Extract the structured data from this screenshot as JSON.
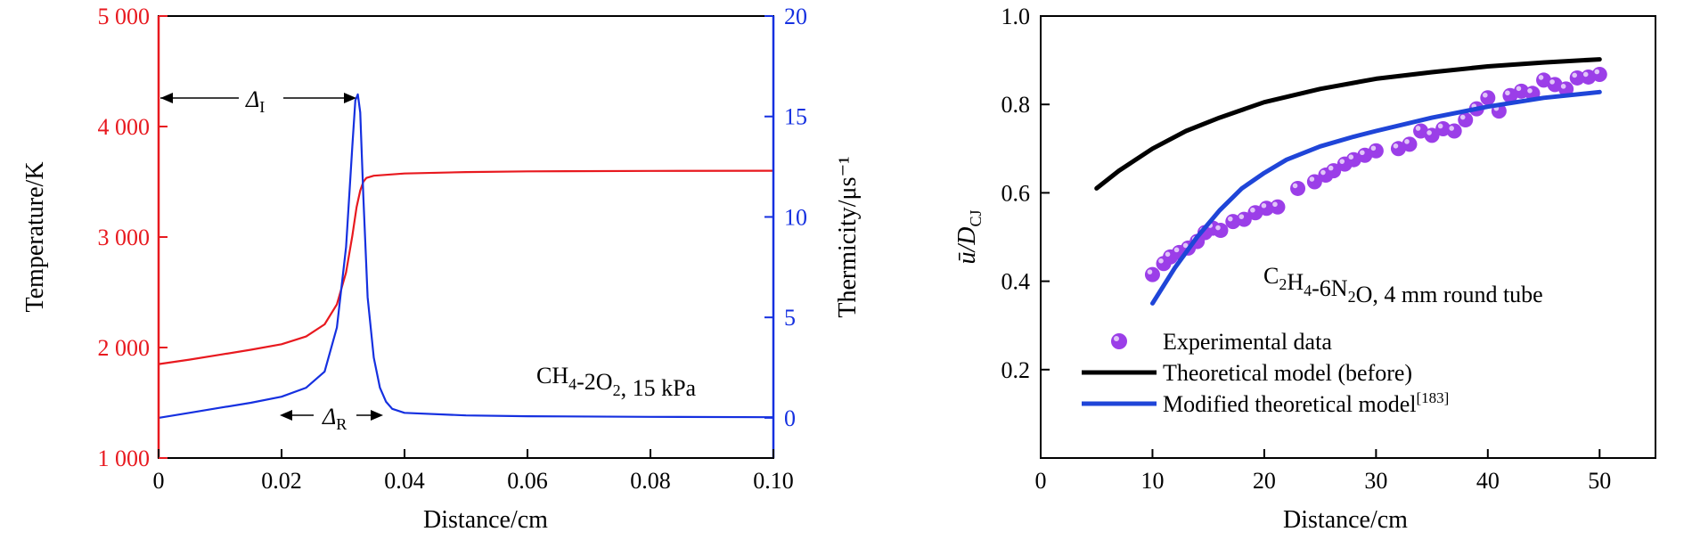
{
  "chart_data": [
    {
      "type": "line",
      "annotation": "CH4-2O2, 15 kPa",
      "delta_i_label": "Δ",
      "delta_i_sub": "I",
      "delta_r_label": "Δ",
      "delta_r_sub": "R",
      "colors": {
        "left": "#e8191f",
        "right": "#1530e0",
        "axis": "#000000"
      },
      "x_axis": {
        "label": "Distance/cm",
        "range": [
          0,
          0.1
        ],
        "ticks": [
          0,
          0.02,
          0.04,
          0.06,
          0.08,
          0.1
        ],
        "tick_labels": [
          "0",
          "0.02",
          "0.04",
          "0.06",
          "0.08",
          "0.10"
        ]
      },
      "y_left": {
        "label": "Temperature/K",
        "range": [
          1000,
          5000
        ],
        "ticks": [
          1000,
          2000,
          3000,
          4000,
          5000
        ],
        "tick_labels": [
          "1 000",
          "2 000",
          "3 000",
          "4 000",
          "5 000"
        ]
      },
      "y_right": {
        "label": "Thermicity/μs⁻¹",
        "range": [
          -2,
          20
        ],
        "ticks": [
          0,
          5,
          10,
          15,
          20
        ],
        "tick_labels": [
          "0",
          "5",
          "10",
          "15",
          "20"
        ]
      },
      "series": [
        {
          "axis": "left",
          "color": "#e8191f",
          "x": [
            0,
            0.005,
            0.01,
            0.015,
            0.02,
            0.024,
            0.027,
            0.029,
            0.0305,
            0.0315,
            0.0322,
            0.0328,
            0.0333,
            0.0338,
            0.035,
            0.04,
            0.05,
            0.06,
            0.08,
            0.1
          ],
          "y": [
            1850,
            1890,
            1935,
            1980,
            2030,
            2100,
            2210,
            2390,
            2680,
            3010,
            3270,
            3420,
            3500,
            3535,
            3555,
            3575,
            3588,
            3594,
            3598,
            3600
          ]
        },
        {
          "axis": "right",
          "color": "#1530e0",
          "x": [
            0,
            0.005,
            0.01,
            0.015,
            0.02,
            0.024,
            0.027,
            0.029,
            0.0305,
            0.0315,
            0.032,
            0.0324,
            0.0328,
            0.0333,
            0.034,
            0.035,
            0.036,
            0.037,
            0.038,
            0.04,
            0.05,
            0.06,
            0.08,
            0.1
          ],
          "y": [
            0,
            0.25,
            0.5,
            0.75,
            1.05,
            1.5,
            2.3,
            4.5,
            8.5,
            13.5,
            15.8,
            16.1,
            15.2,
            11,
            6,
            3,
            1.5,
            0.8,
            0.45,
            0.25,
            0.12,
            0.08,
            0.05,
            0.03
          ]
        }
      ]
    },
    {
      "type": "scatter",
      "annotation": "C2H4-6N2O, 4 mm round tube",
      "colors": {
        "experimental": "#9b3ee8",
        "before": "#000000",
        "modified": "#1f45d8"
      },
      "x_axis": {
        "label": "Distance/cm",
        "range": [
          0,
          55
        ],
        "ticks": [
          0,
          10,
          20,
          30,
          40,
          50
        ],
        "tick_labels": [
          "0",
          "10",
          "20",
          "30",
          "40",
          "50"
        ]
      },
      "y_axis": {
        "label": "ū/D_CJ",
        "range": [
          0,
          1.0
        ],
        "ticks": [
          0.2,
          0.4,
          0.6,
          0.8,
          1.0
        ],
        "tick_labels": [
          "0.2",
          "0.4",
          "0.6",
          "0.8",
          "1.0"
        ]
      },
      "legend": [
        "Experimental data",
        "Theoretical model (before)",
        "Modified theoretical model[183]"
      ],
      "series": [
        {
          "name": "Experimental data",
          "kind": "points",
          "x": [
            10,
            11,
            11.6,
            12.4,
            13.2,
            14,
            14.7,
            15.4,
            16.1,
            17.2,
            18.2,
            19.2,
            20.2,
            21.2,
            23,
            24.5,
            25.5,
            26.2,
            27.2,
            28,
            29,
            30,
            32,
            33,
            34,
            35,
            36,
            37,
            38,
            39,
            40,
            41,
            42,
            43,
            44,
            45,
            46,
            47,
            48,
            49,
            50
          ],
          "y": [
            0.415,
            0.44,
            0.455,
            0.465,
            0.475,
            0.49,
            0.51,
            0.52,
            0.515,
            0.535,
            0.54,
            0.555,
            0.565,
            0.568,
            0.61,
            0.625,
            0.64,
            0.65,
            0.665,
            0.675,
            0.685,
            0.695,
            0.7,
            0.71,
            0.74,
            0.73,
            0.745,
            0.74,
            0.765,
            0.79,
            0.815,
            0.785,
            0.82,
            0.83,
            0.825,
            0.855,
            0.845,
            0.835,
            0.86,
            0.862,
            0.868
          ]
        },
        {
          "name": "Theoretical model (before)",
          "kind": "line",
          "x": [
            5,
            7,
            10,
            13,
            16,
            20,
            25,
            30,
            35,
            40,
            45,
            50
          ],
          "y": [
            0.61,
            0.65,
            0.7,
            0.74,
            0.77,
            0.805,
            0.835,
            0.858,
            0.873,
            0.886,
            0.895,
            0.902
          ]
        },
        {
          "name": "Modified theoretical model[183]",
          "kind": "line",
          "x": [
            10,
            12,
            14,
            16,
            18,
            20,
            22,
            25,
            28,
            30,
            35,
            40,
            45,
            50
          ],
          "y": [
            0.35,
            0.43,
            0.5,
            0.56,
            0.61,
            0.645,
            0.675,
            0.705,
            0.727,
            0.74,
            0.77,
            0.795,
            0.815,
            0.828
          ]
        }
      ]
    }
  ]
}
